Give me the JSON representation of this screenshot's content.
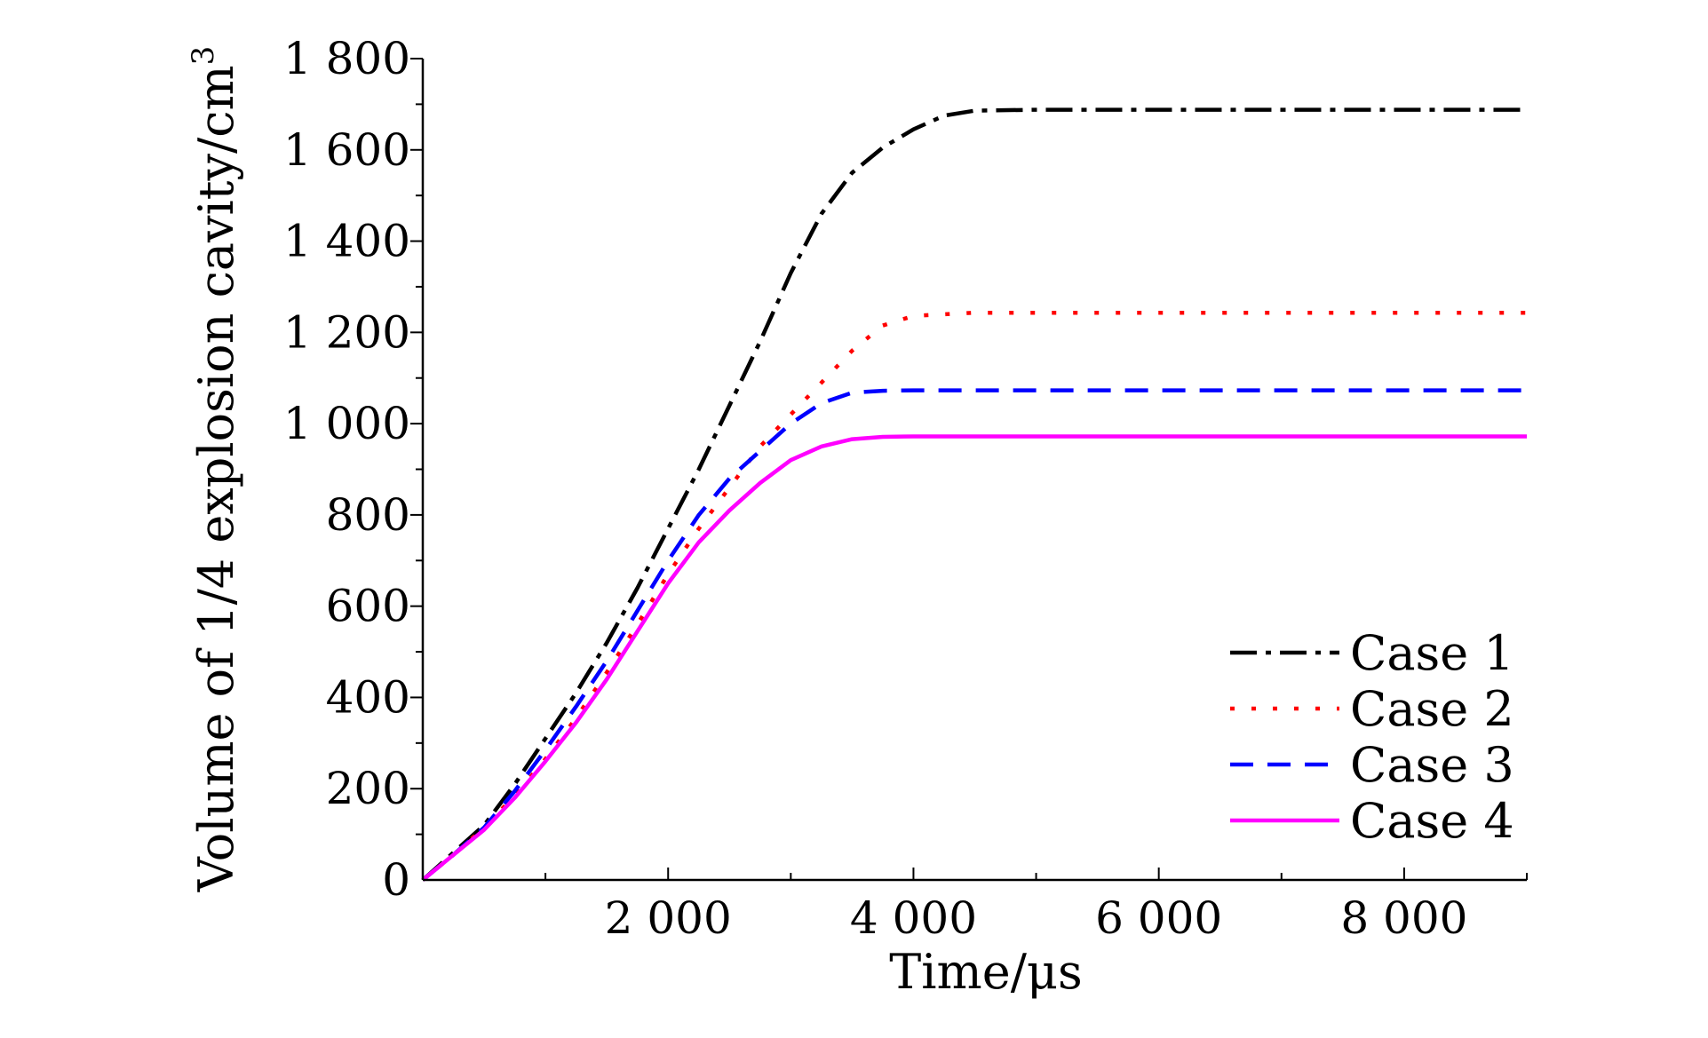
{
  "chart_data": {
    "type": "line",
    "title": "",
    "xlabel": "Time/μs",
    "ylabel": "Volume of 1/4 explosion cavity/cm",
    "ylabel_superscript": "3",
    "xlim": [
      0,
      9000
    ],
    "ylim": [
      0,
      1800
    ],
    "xticks": [
      {
        "value": 2000,
        "label": "2 000"
      },
      {
        "value": 4000,
        "label": "4 000"
      },
      {
        "value": 6000,
        "label": "6 000"
      },
      {
        "value": 8000,
        "label": "8 000"
      }
    ],
    "yticks": [
      {
        "value": 0,
        "label": "0"
      },
      {
        "value": 200,
        "label": "200"
      },
      {
        "value": 400,
        "label": "400"
      },
      {
        "value": 600,
        "label": "600"
      },
      {
        "value": 800,
        "label": "800"
      },
      {
        "value": 1000,
        "label": "1 000"
      },
      {
        "value": 1200,
        "label": "1 200"
      },
      {
        "value": 1400,
        "label": "1 400"
      },
      {
        "value": 1600,
        "label": "1 600"
      },
      {
        "value": 1800,
        "label": "1 800"
      }
    ],
    "x_minor_step": 1000,
    "y_minor_step": 100,
    "grid": false,
    "legend_position": "bottom-right",
    "series": [
      {
        "name": "Case 1",
        "color": "#000000",
        "dash": "dash-dot",
        "points": [
          [
            0,
            0
          ],
          [
            250,
            60
          ],
          [
            500,
            120
          ],
          [
            750,
            210
          ],
          [
            1000,
            310
          ],
          [
            1250,
            410
          ],
          [
            1500,
            520
          ],
          [
            1750,
            640
          ],
          [
            2000,
            770
          ],
          [
            2250,
            900
          ],
          [
            2500,
            1040
          ],
          [
            2750,
            1180
          ],
          [
            3000,
            1330
          ],
          [
            3250,
            1460
          ],
          [
            3500,
            1550
          ],
          [
            3750,
            1605
          ],
          [
            4000,
            1645
          ],
          [
            4250,
            1675
          ],
          [
            4500,
            1686
          ],
          [
            5000,
            1688
          ],
          [
            6000,
            1688
          ],
          [
            7000,
            1688
          ],
          [
            8000,
            1688
          ],
          [
            9000,
            1688
          ]
        ]
      },
      {
        "name": "Case 2",
        "color": "#ff0000",
        "dash": "dotted",
        "points": [
          [
            0,
            0
          ],
          [
            250,
            55
          ],
          [
            500,
            115
          ],
          [
            750,
            185
          ],
          [
            1000,
            265
          ],
          [
            1250,
            355
          ],
          [
            1500,
            455
          ],
          [
            1750,
            560
          ],
          [
            2000,
            670
          ],
          [
            2250,
            770
          ],
          [
            2500,
            860
          ],
          [
            2750,
            950
          ],
          [
            3000,
            1020
          ],
          [
            3250,
            1090
          ],
          [
            3500,
            1160
          ],
          [
            3750,
            1215
          ],
          [
            4000,
            1236
          ],
          [
            4500,
            1243
          ],
          [
            5000,
            1243
          ],
          [
            6000,
            1243
          ],
          [
            7000,
            1243
          ],
          [
            8000,
            1243
          ],
          [
            9000,
            1243
          ]
        ]
      },
      {
        "name": "Case 3",
        "color": "#0000ff",
        "dash": "dashed",
        "points": [
          [
            0,
            0
          ],
          [
            250,
            55
          ],
          [
            500,
            115
          ],
          [
            750,
            195
          ],
          [
            1000,
            285
          ],
          [
            1250,
            380
          ],
          [
            1500,
            480
          ],
          [
            1750,
            590
          ],
          [
            2000,
            700
          ],
          [
            2250,
            800
          ],
          [
            2500,
            880
          ],
          [
            2750,
            940
          ],
          [
            3000,
            1000
          ],
          [
            3250,
            1045
          ],
          [
            3500,
            1068
          ],
          [
            3750,
            1072
          ],
          [
            4000,
            1073
          ],
          [
            5000,
            1073
          ],
          [
            6000,
            1073
          ],
          [
            7000,
            1073
          ],
          [
            8000,
            1073
          ],
          [
            9000,
            1073
          ]
        ]
      },
      {
        "name": "Case 4",
        "color": "#ff00ff",
        "dash": "solid",
        "points": [
          [
            0,
            0
          ],
          [
            250,
            55
          ],
          [
            500,
            110
          ],
          [
            750,
            180
          ],
          [
            1000,
            260
          ],
          [
            1250,
            345
          ],
          [
            1500,
            440
          ],
          [
            1750,
            545
          ],
          [
            2000,
            650
          ],
          [
            2250,
            740
          ],
          [
            2500,
            810
          ],
          [
            2750,
            870
          ],
          [
            3000,
            920
          ],
          [
            3250,
            950
          ],
          [
            3500,
            966
          ],
          [
            3750,
            971
          ],
          [
            4000,
            972
          ],
          [
            5000,
            972
          ],
          [
            6000,
            972
          ],
          [
            7000,
            972
          ],
          [
            8000,
            972
          ],
          [
            9000,
            972
          ]
        ]
      }
    ]
  }
}
